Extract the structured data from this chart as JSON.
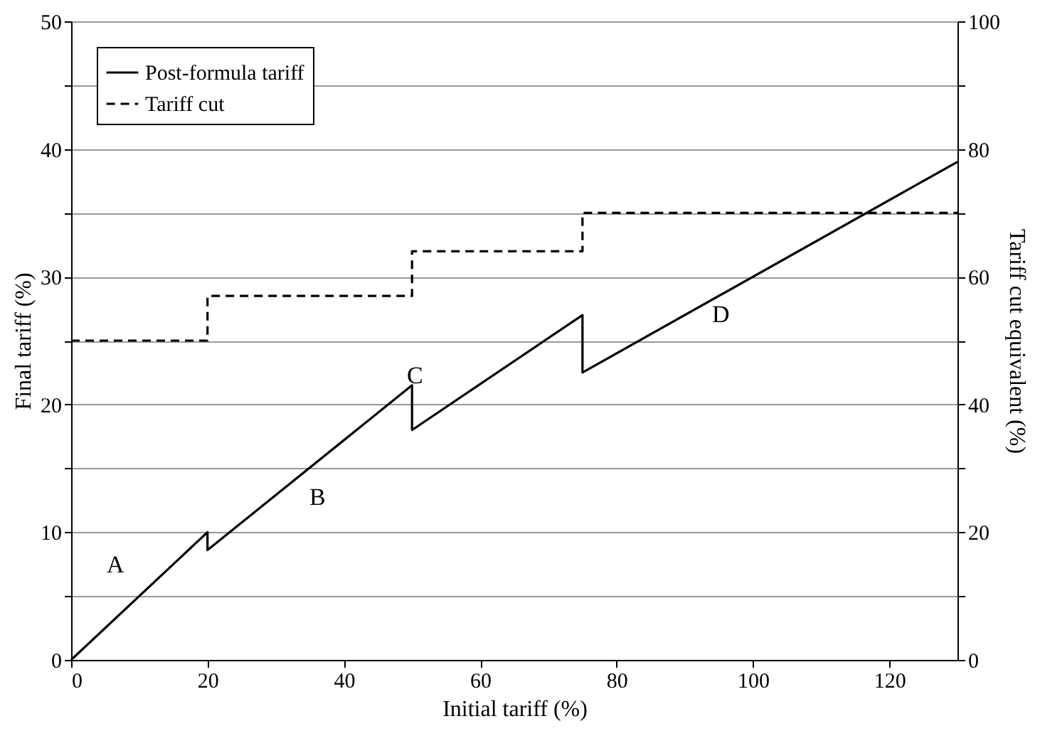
{
  "chart_data": {
    "type": "line",
    "xlabel": "Initial tariff (%)",
    "ylabel": "Final tariff (%)",
    "y2label": "Tariff cut equivalent (%)",
    "xlim": [
      0,
      130
    ],
    "xticks": [
      0,
      20,
      40,
      60,
      80,
      100,
      120
    ],
    "ylim": [
      0,
      50
    ],
    "yticks": [
      0,
      {
        "value": 5,
        "label": null
      },
      10,
      {
        "value": 15,
        "label": null
      },
      20,
      {
        "value": 25,
        "label": null
      },
      30,
      {
        "value": 35,
        "label": null
      },
      40,
      {
        "value": 45,
        "label": null
      },
      50
    ],
    "y2lim": [
      0,
      100
    ],
    "y2ticks": [
      0,
      {
        "value": 10,
        "label": null
      },
      20,
      {
        "value": 30,
        "label": null
      },
      40,
      {
        "value": 50,
        "label": null
      },
      60,
      {
        "value": 70,
        "label": null
      },
      80,
      {
        "value": 90,
        "label": null
      },
      100
    ],
    "grid": "y",
    "legend": "top left",
    "marker": "none",
    "series": [
      {
        "name": "Post-formula tariff",
        "color": "#000000",
        "line_style": "solid",
        "x": [
          0,
          20,
          20,
          50,
          50,
          75,
          75,
          130
        ],
        "values": [
          0,
          10,
          8.6,
          21.5,
          18,
          27,
          22.5,
          39
        ]
      },
      {
        "name": "Tariff cut",
        "color": "#000000",
        "line_style": "dashed",
        "axis": "y2",
        "x": [
          0,
          20,
          20,
          50,
          50,
          75,
          75,
          130
        ],
        "values": [
          50,
          50,
          57,
          57,
          64,
          64,
          70,
          70
        ]
      }
    ],
    "annotations": [
      "A",
      "B",
      "C",
      "D"
    ]
  }
}
